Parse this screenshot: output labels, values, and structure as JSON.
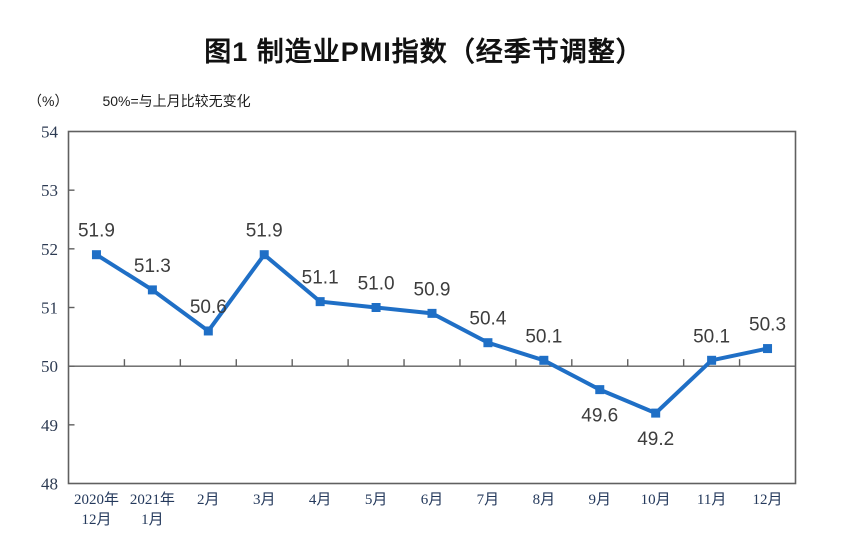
{
  "title": "图1 制造业PMI指数（经季节调整）",
  "unit_label": "（%）",
  "note": "50%=与上月比较无变化",
  "chart_data": {
    "type": "line",
    "title": "图1 制造业PMI指数（经季节调整）",
    "categories": [
      "2020年\n12月",
      "2021年\n1月",
      "2月",
      "3月",
      "4月",
      "5月",
      "6月",
      "7月",
      "8月",
      "9月",
      "10月",
      "11月",
      "12月"
    ],
    "values": [
      51.9,
      51.3,
      50.6,
      51.9,
      51.1,
      51.0,
      50.9,
      50.4,
      50.1,
      49.6,
      49.2,
      50.1,
      50.3
    ],
    "label_decimals": 1,
    "label_below": [
      false,
      false,
      false,
      false,
      false,
      false,
      false,
      false,
      false,
      true,
      true,
      false,
      false
    ],
    "ylabel": "（%）",
    "yticks": [
      48,
      49,
      50,
      51,
      52,
      53,
      54
    ],
    "ylim": [
      48,
      54
    ],
    "reference_value": 50,
    "grid": false,
    "legend": "none",
    "colors": {
      "line": "#1F6FC6",
      "marker": "#1F6FC6",
      "axis": "#606060",
      "data_label": "#3D3D3D",
      "y_tick_label": "#2C3A52",
      "x_tick_label": "#24395C"
    }
  }
}
